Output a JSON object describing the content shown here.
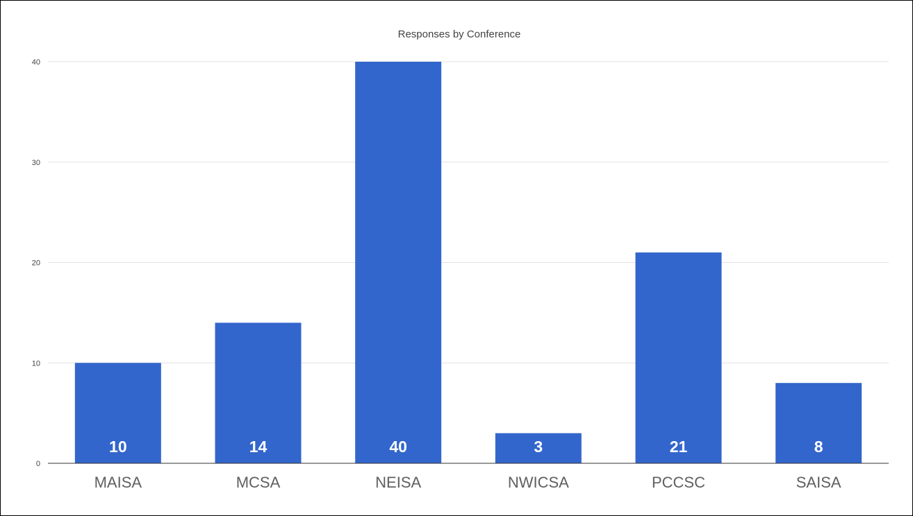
{
  "chart_data": {
    "type": "bar",
    "title": "Responses by Conference",
    "xlabel": "",
    "ylabel": "",
    "categories": [
      "MAISA",
      "MCSA",
      "NEISA",
      "NWICSA",
      "PCCSC",
      "SAISA"
    ],
    "values": [
      10,
      14,
      40,
      3,
      21,
      8
    ],
    "ylim": [
      0,
      40
    ],
    "yticks": [
      "0",
      "10",
      "20",
      "30",
      "40"
    ],
    "data_labels": [
      "10",
      "14",
      "40",
      "3",
      "21",
      "8"
    ],
    "grid": true,
    "legend": "none",
    "bar_color": "#3366cc",
    "label_color": "#ffffff",
    "grid_color": "#e0e0e0",
    "axis_color": "#333333"
  }
}
